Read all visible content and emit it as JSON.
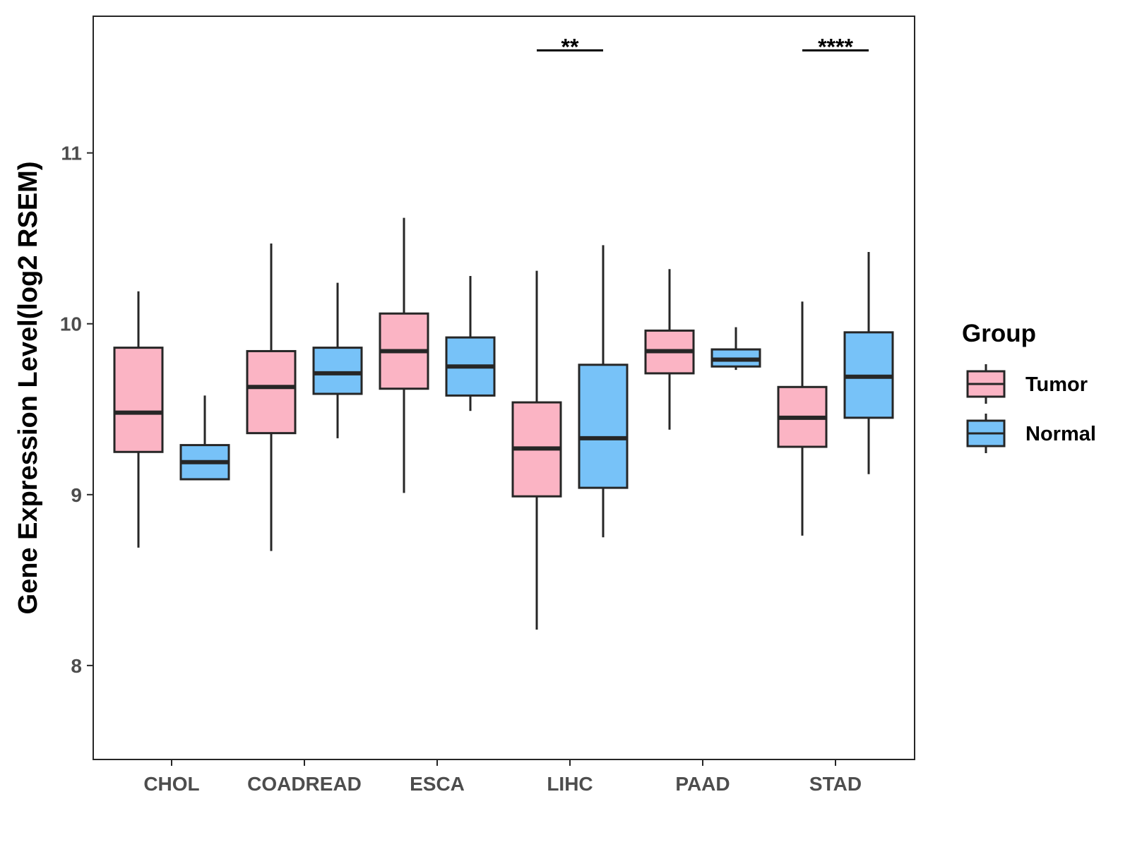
{
  "chart_data": {
    "type": "boxplot",
    "ylabel": "Gene Expression Level(log2 RSEM)",
    "xlabel": "",
    "ylim": [
      7.45,
      11.8
    ],
    "y_ticks": [
      8,
      9,
      10,
      11
    ],
    "categories": [
      "CHOL",
      "COADREAD",
      "ESCA",
      "LIHC",
      "PAAD",
      "STAD"
    ],
    "legend": {
      "title": "Group",
      "position": "right"
    },
    "grid": false,
    "series": [
      {
        "name": "Tumor",
        "color": "#FBB4C4",
        "boxes": [
          {
            "whisker_low": 8.69,
            "q1": 9.25,
            "median": 9.48,
            "q3": 9.86,
            "whisker_high": 10.19
          },
          {
            "whisker_low": 8.67,
            "q1": 9.36,
            "median": 9.63,
            "q3": 9.84,
            "whisker_high": 10.47
          },
          {
            "whisker_low": 9.01,
            "q1": 9.62,
            "median": 9.84,
            "q3": 10.06,
            "whisker_high": 10.62
          },
          {
            "whisker_low": 8.21,
            "q1": 8.99,
            "median": 9.27,
            "q3": 9.54,
            "whisker_high": 10.31
          },
          {
            "whisker_low": 9.38,
            "q1": 9.71,
            "median": 9.84,
            "q3": 9.96,
            "whisker_high": 10.32
          },
          {
            "whisker_low": 8.76,
            "q1": 9.28,
            "median": 9.45,
            "q3": 9.63,
            "whisker_high": 10.13
          }
        ]
      },
      {
        "name": "Normal",
        "color": "#77C2F8",
        "boxes": [
          {
            "whisker_low": 9.09,
            "q1": 9.09,
            "median": 9.19,
            "q3": 9.29,
            "whisker_high": 9.58
          },
          {
            "whisker_low": 9.33,
            "q1": 9.59,
            "median": 9.71,
            "q3": 9.86,
            "whisker_high": 10.24
          },
          {
            "whisker_low": 9.49,
            "q1": 9.58,
            "median": 9.75,
            "q3": 9.92,
            "whisker_high": 10.28
          },
          {
            "whisker_low": 8.75,
            "q1": 9.04,
            "median": 9.33,
            "q3": 9.76,
            "whisker_high": 10.46
          },
          {
            "whisker_low": 9.73,
            "q1": 9.75,
            "median": 9.79,
            "q3": 9.85,
            "whisker_high": 9.98
          },
          {
            "whisker_low": 9.12,
            "q1": 9.45,
            "median": 9.69,
            "q3": 9.95,
            "whisker_high": 10.42
          }
        ]
      }
    ],
    "significance": [
      {
        "category": "LIHC",
        "label": "**",
        "y": 11.6
      },
      {
        "category": "STAD",
        "label": "****",
        "y": 11.6
      }
    ]
  }
}
